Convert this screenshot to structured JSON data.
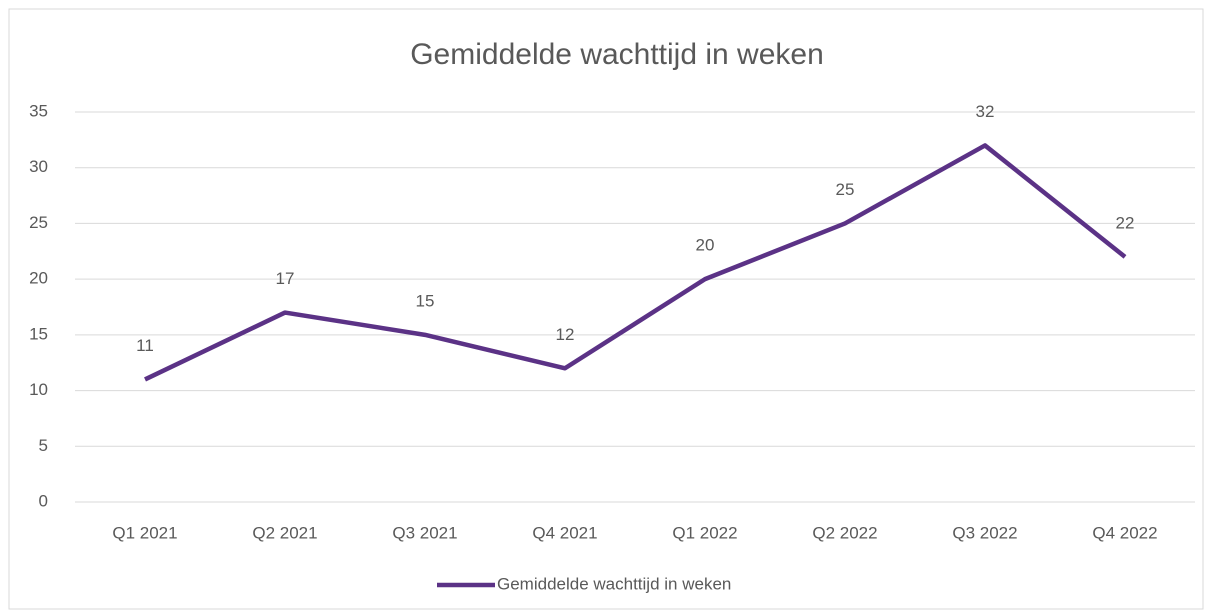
{
  "chart_data": {
    "type": "line",
    "title": "Gemiddelde wachttijd in weken",
    "categories": [
      "Q1 2021",
      "Q2 2021",
      "Q3 2021",
      "Q4 2021",
      "Q1 2022",
      "Q2 2022",
      "Q3 2022",
      "Q4 2022"
    ],
    "series": [
      {
        "name": "Gemiddelde wachttijd in weken",
        "color": "#5b3286",
        "values": [
          11,
          17,
          15,
          12,
          20,
          25,
          32,
          22
        ]
      }
    ],
    "ylim": [
      0,
      35
    ],
    "yticks": [
      0,
      5,
      10,
      15,
      20,
      25,
      30,
      35
    ],
    "grid": true,
    "legend": "bottom"
  }
}
